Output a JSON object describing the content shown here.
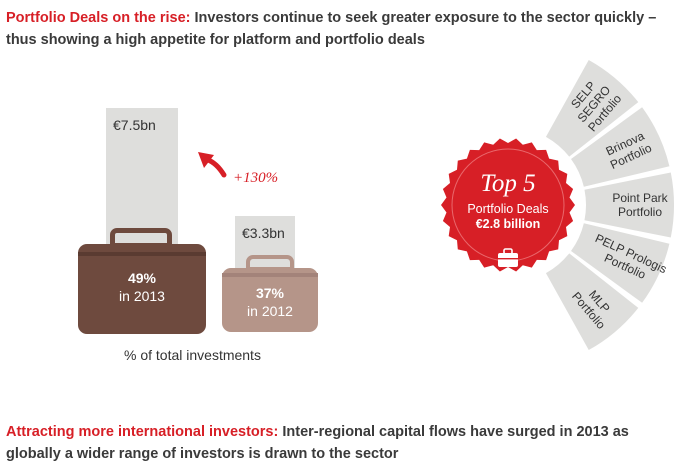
{
  "top_headline": {
    "accent": "Portfolio Deals on the rise:",
    "text": " Investors continue to seek greater exposure to the sector quickly – thus showing a high appetite for platform and portfolio deals"
  },
  "bottom_headline": {
    "accent": "Attracting more international investors:",
    "text": " Inter-regional capital flows have surged in 2013 as globally a wider range of investors is drawn to the sector"
  },
  "chart_data": [
    {
      "type": "bar",
      "categories": [
        "2013",
        "2012"
      ],
      "series": [
        {
          "name": "",
          "values": [
            7.5,
            3.3
          ]
        }
      ],
      "value_labels": [
        "€7.5bn",
        "€3.3bn"
      ],
      "share_labels": [
        "49%",
        "37%"
      ],
      "share_values": [
        49,
        37
      ],
      "year_labels": [
        "in 2013",
        "in 2012"
      ],
      "growth_label": "+130%",
      "caption": "% of total investments"
    }
  ],
  "top5": {
    "title": "Top 5",
    "line1": "Portfolio Deals",
    "line2": "€2.8 billion",
    "deals": [
      [
        "SELP",
        "SEGRO",
        "Portfolio"
      ],
      [
        "Brinova",
        "Portfolio"
      ],
      [
        "Point Park",
        "Portfolio"
      ],
      [
        "PELP Prologis",
        "Portfolio"
      ],
      [
        "MLP",
        "Portfolio"
      ]
    ]
  },
  "colors": {
    "accent": "#d71f26",
    "bag_2013": "#6e4a3e",
    "bag_2012": "#b59589",
    "panel": "#dededc",
    "fan": "#dededc"
  }
}
